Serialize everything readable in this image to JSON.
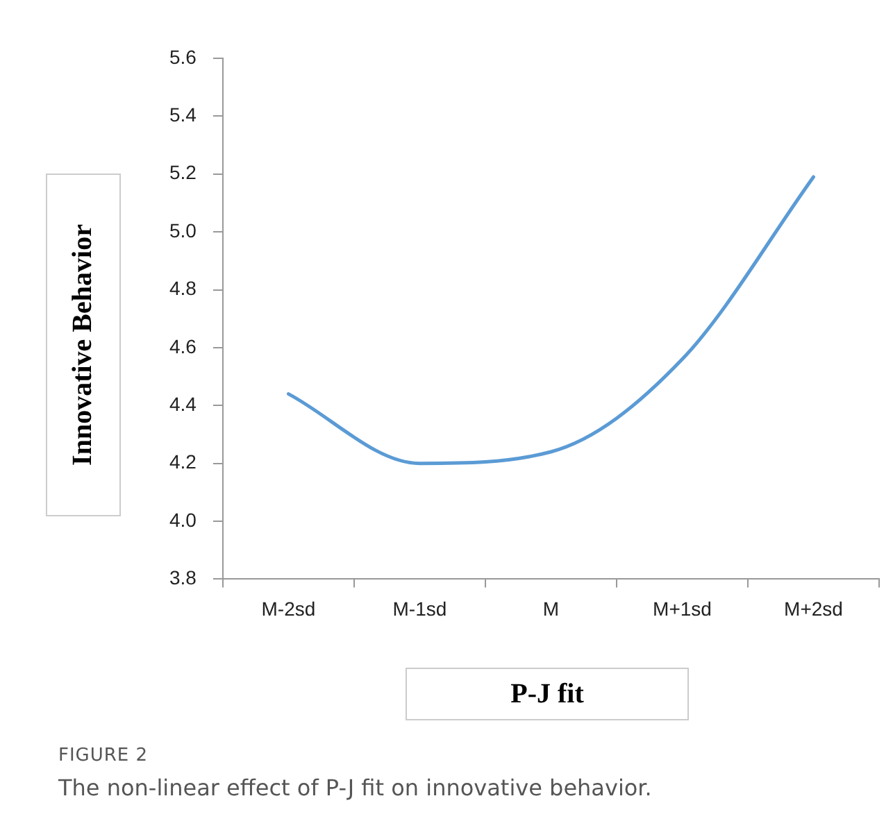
{
  "chart_data": {
    "type": "line",
    "xlabel": "P-J fit",
    "ylabel": "Innovative Behavior",
    "categories": [
      "M-2sd",
      "M-1sd",
      "M",
      "M+1sd",
      "M+2sd"
    ],
    "series": [
      {
        "color": "#5b9bd5",
        "values": [
          4.44,
          4.2,
          4.24,
          4.56,
          5.19
        ]
      }
    ],
    "ylim": [
      3.8,
      5.6
    ],
    "yticks": [
      3.8,
      {
        "value": 4,
        "label": "4.0"
      },
      4.2,
      4.4,
      4.6,
      4.8,
      {
        "value": 5,
        "label": "5.0"
      },
      5.2,
      5.4,
      5.6
    ],
    "grid": false,
    "legend": false,
    "marker": "none",
    "line_style": "solid",
    "annotations": [
      "FIGURE 2",
      "The non-linear effect of P-J fit on innovative behavior."
    ]
  }
}
